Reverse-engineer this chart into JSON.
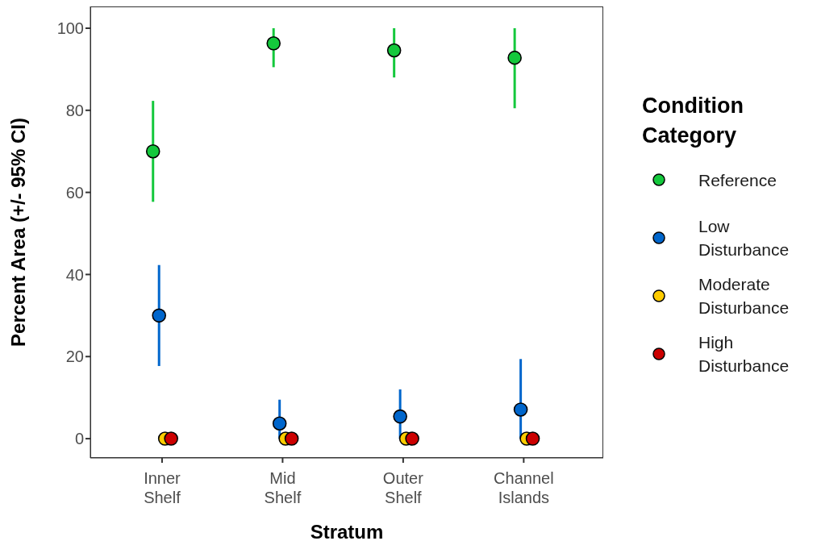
{
  "chart_data": {
    "type": "scatter",
    "xlabel": "Stratum",
    "ylabel": "Percent Area (+/- 95% CI)",
    "legend_title": "Condition Category",
    "categories": [
      "Inner Shelf",
      "Mid Shelf",
      "Outer Shelf",
      "Channel Islands"
    ],
    "series": [
      {
        "name": "Reference",
        "color": "#14c83c",
        "values": [
          70,
          96.3,
          94.6,
          92.8
        ],
        "errors": [
          [
            57.7,
            82.3
          ],
          [
            90.5,
            100
          ],
          [
            88,
            100
          ],
          [
            80.5,
            100
          ]
        ]
      },
      {
        "name": "Low Disturbance",
        "color": "#0066cc",
        "values": [
          30,
          3.7,
          5.4,
          7.1
        ],
        "errors": [
          [
            17.7,
            42.3
          ],
          [
            0,
            9.5
          ],
          [
            0,
            12
          ],
          [
            0,
            19.4
          ]
        ]
      },
      {
        "name": "Moderate Disturbance",
        "color": "#ffcc00",
        "values": [
          0,
          0,
          0,
          0
        ]
      },
      {
        "name": "High Disturbance",
        "color": "#cc0000",
        "values": [
          0,
          0,
          0,
          0
        ]
      }
    ],
    "ylim": [
      -4.7,
      105.3
    ],
    "yticks": [
      0,
      20,
      40,
      60,
      80,
      100
    ],
    "grid": false,
    "legend": "right",
    "marker": "circle"
  }
}
